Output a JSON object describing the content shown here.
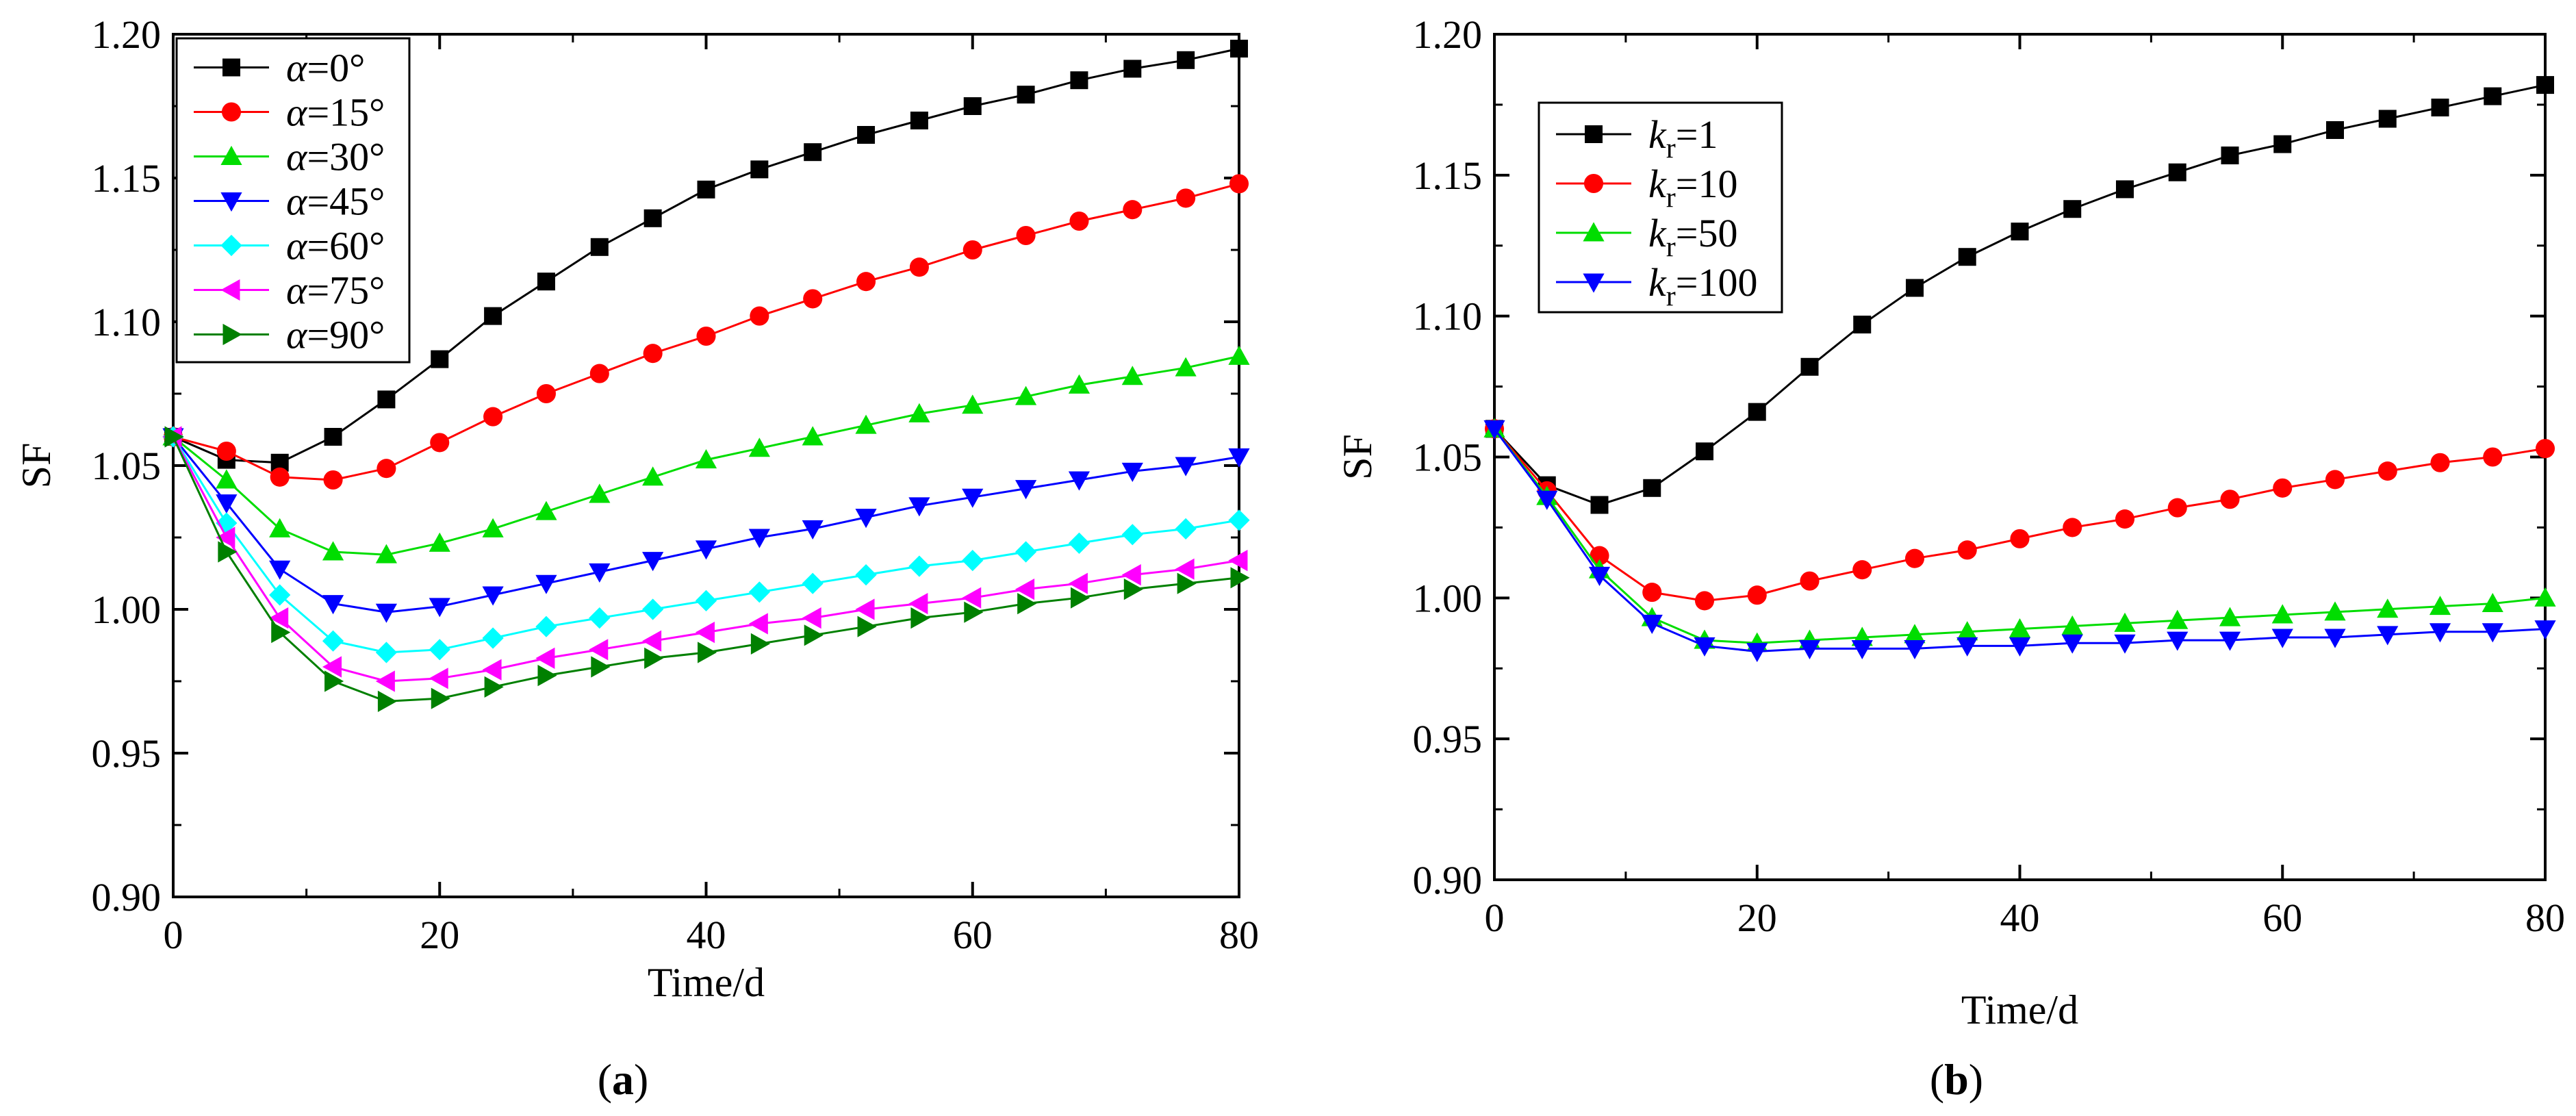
{
  "chart_data": [
    {
      "type": "line",
      "panel_label": "a",
      "xlabel": "Time/d",
      "ylabel": "SF",
      "xlim": [
        0,
        80
      ],
      "ylim": [
        0.9,
        1.2
      ],
      "xticks": [
        "0",
        "20",
        "40",
        "60",
        "80"
      ],
      "yticks": [
        "0.90",
        "0.95",
        "1.00",
        "1.05",
        "1.10",
        "1.15",
        "1.20"
      ],
      "legend_position": "top-left",
      "x": [
        0,
        4,
        8,
        12,
        16,
        20,
        24,
        28,
        32,
        36,
        40,
        44,
        48,
        52,
        56,
        60,
        64,
        68,
        72,
        76,
        80
      ],
      "series": [
        {
          "name": "α=0°",
          "symbol": "α",
          "value": "=0°",
          "color": "#000000",
          "marker": "square",
          "values": [
            1.06,
            1.052,
            1.051,
            1.06,
            1.073,
            1.087,
            1.102,
            1.114,
            1.126,
            1.136,
            1.146,
            1.153,
            1.159,
            1.165,
            1.17,
            1.175,
            1.179,
            1.184,
            1.188,
            1.191,
            1.195
          ]
        },
        {
          "name": "α=15°",
          "symbol": "α",
          "value": "=15°",
          "color": "#ff0000",
          "marker": "circle",
          "values": [
            1.06,
            1.055,
            1.046,
            1.045,
            1.049,
            1.058,
            1.067,
            1.075,
            1.082,
            1.089,
            1.095,
            1.102,
            1.108,
            1.114,
            1.119,
            1.125,
            1.13,
            1.135,
            1.139,
            1.143,
            1.148
          ]
        },
        {
          "name": "α=30°",
          "symbol": "α",
          "value": "=30°",
          "color": "#00dd00",
          "marker": "triangle-up",
          "values": [
            1.06,
            1.045,
            1.028,
            1.02,
            1.019,
            1.023,
            1.028,
            1.034,
            1.04,
            1.046,
            1.052,
            1.056,
            1.06,
            1.064,
            1.068,
            1.071,
            1.074,
            1.078,
            1.081,
            1.084,
            1.088
          ]
        },
        {
          "name": "α=45°",
          "symbol": "α",
          "value": "=45°",
          "color": "#0000ff",
          "marker": "triangle-down",
          "values": [
            1.06,
            1.037,
            1.014,
            1.002,
            0.999,
            1.001,
            1.005,
            1.009,
            1.013,
            1.017,
            1.021,
            1.025,
            1.028,
            1.032,
            1.036,
            1.039,
            1.042,
            1.045,
            1.048,
            1.05,
            1.053
          ]
        },
        {
          "name": "α=60°",
          "symbol": "α",
          "value": "=60°",
          "color": "#00ffff",
          "marker": "diamond",
          "values": [
            1.06,
            1.03,
            1.005,
            0.989,
            0.985,
            0.986,
            0.99,
            0.994,
            0.997,
            1.0,
            1.003,
            1.006,
            1.009,
            1.012,
            1.015,
            1.017,
            1.02,
            1.023,
            1.026,
            1.028,
            1.031
          ]
        },
        {
          "name": "α=75°",
          "symbol": "α",
          "value": "=75°",
          "color": "#ff00ff",
          "marker": "triangle-left",
          "values": [
            1.06,
            1.025,
            0.997,
            0.98,
            0.975,
            0.976,
            0.979,
            0.983,
            0.986,
            0.989,
            0.992,
            0.995,
            0.997,
            1.0,
            1.002,
            1.004,
            1.007,
            1.009,
            1.012,
            1.014,
            1.017
          ]
        },
        {
          "name": "α=90°",
          "symbol": "α",
          "value": "=90°",
          "color": "#008000",
          "marker": "triangle-right",
          "values": [
            1.06,
            1.02,
            0.992,
            0.975,
            0.968,
            0.969,
            0.973,
            0.977,
            0.98,
            0.983,
            0.985,
            0.988,
            0.991,
            0.994,
            0.997,
            0.999,
            1.002,
            1.004,
            1.007,
            1.009,
            1.011
          ]
        }
      ]
    },
    {
      "type": "line",
      "panel_label": "b",
      "xlabel": "Time/d",
      "ylabel": "SF",
      "xlim": [
        0,
        80
      ],
      "ylim": [
        0.9,
        1.2
      ],
      "xticks": [
        "0",
        "20",
        "40",
        "60",
        "80"
      ],
      "yticks": [
        "0.90",
        "0.95",
        "1.00",
        "1.05",
        "1.10",
        "1.15",
        "1.20"
      ],
      "legend_position": "top-left",
      "x": [
        0,
        4,
        8,
        12,
        16,
        20,
        24,
        28,
        32,
        36,
        40,
        44,
        48,
        52,
        56,
        60,
        64,
        68,
        72,
        76,
        80
      ],
      "series": [
        {
          "name": "kr=1",
          "symbol": "k",
          "subscript": "r",
          "value": "=1",
          "color": "#000000",
          "marker": "square",
          "values": [
            1.06,
            1.04,
            1.033,
            1.039,
            1.052,
            1.066,
            1.082,
            1.097,
            1.11,
            1.121,
            1.13,
            1.138,
            1.145,
            1.151,
            1.157,
            1.161,
            1.166,
            1.17,
            1.174,
            1.178,
            1.182
          ]
        },
        {
          "name": "kr=10",
          "symbol": "k",
          "subscript": "r",
          "value": "=10",
          "color": "#ff0000",
          "marker": "circle",
          "values": [
            1.06,
            1.038,
            1.015,
            1.002,
            0.999,
            1.001,
            1.006,
            1.01,
            1.014,
            1.017,
            1.021,
            1.025,
            1.028,
            1.032,
            1.035,
            1.039,
            1.042,
            1.045,
            1.048,
            1.05,
            1.053
          ]
        },
        {
          "name": "kr=50",
          "symbol": "k",
          "subscript": "r",
          "value": "=50",
          "color": "#00dd00",
          "marker": "triangle-up",
          "values": [
            1.06,
            1.036,
            1.01,
            0.993,
            0.985,
            0.984,
            0.985,
            0.986,
            0.987,
            0.988,
            0.989,
            0.99,
            0.991,
            0.992,
            0.993,
            0.994,
            0.995,
            0.996,
            0.997,
            0.998,
            1.0
          ]
        },
        {
          "name": "kr=100",
          "symbol": "k",
          "subscript": "r",
          "value": "=100",
          "color": "#0000ff",
          "marker": "triangle-down",
          "values": [
            1.06,
            1.035,
            1.008,
            0.991,
            0.983,
            0.981,
            0.982,
            0.982,
            0.982,
            0.983,
            0.983,
            0.984,
            0.984,
            0.985,
            0.985,
            0.986,
            0.986,
            0.987,
            0.988,
            0.988,
            0.989
          ]
        }
      ]
    }
  ]
}
